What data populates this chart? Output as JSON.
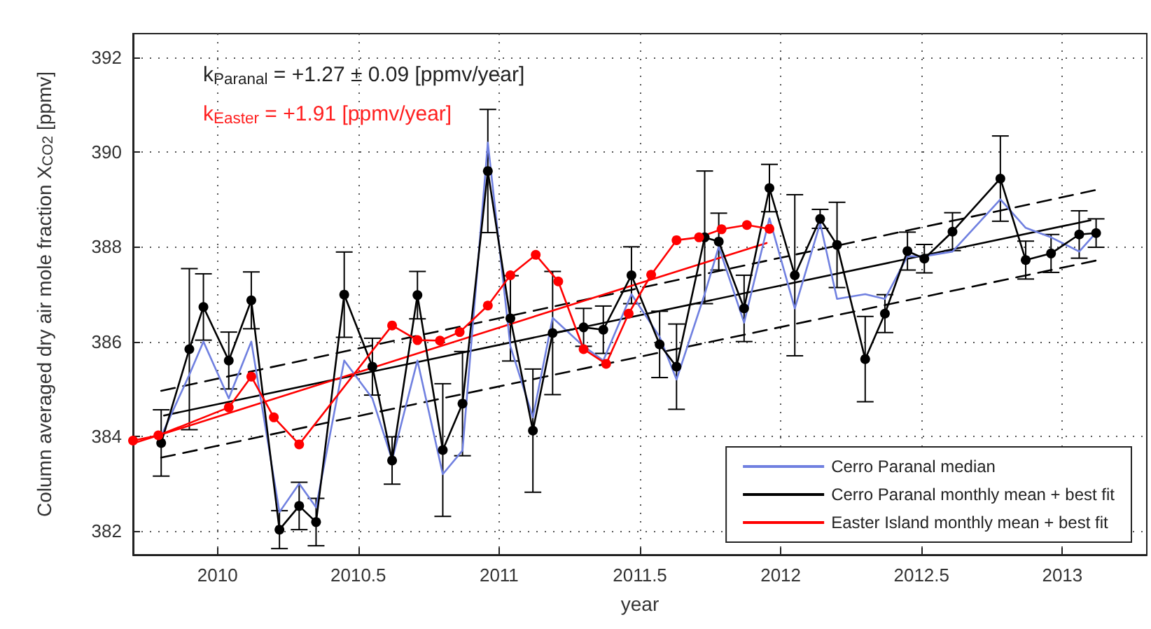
{
  "chart_data": {
    "type": "line",
    "xlabel": "year",
    "ylabel": "Column averaged dry air mole fraction X$_{CO2}$ [ppmv]",
    "annotations": [
      "k$_{Paranal}$ = +1.27 ± 0.09 [ppmv/year]",
      "k$_{Easter}$ = +1.91 [ppmv/year]"
    ],
    "xlim": [
      2009.7,
      2013.3
    ],
    "xticks": [
      2010,
      2010.5,
      2011,
      2011.5,
      2012,
      2012.5,
      2013
    ],
    "ylim": [
      381.5,
      392.5
    ],
    "yticks": [
      382,
      384,
      386,
      388,
      390,
      392
    ],
    "grid": true,
    "legend": "bottom right",
    "series": [
      {
        "color": "#000000",
        "marker": "none",
        "line_style": "solid",
        "x": [
          2009.81,
          2013.1
        ],
        "values": [
          384.44,
          388.56
        ]
      },
      {
        "color": "#000000",
        "marker": "none",
        "line_style": "dashed",
        "x": [
          2009.8,
          2013.12
        ],
        "values": [
          384.96,
          389.2
        ]
      },
      {
        "color": "#000000",
        "marker": "none",
        "line_style": "dashed",
        "x": [
          2009.8,
          2013.12
        ],
        "values": [
          383.55,
          387.71
        ]
      },
      {
        "color": "#ff0000",
        "marker": "none",
        "line_style": "solid",
        "x": [
          2009.7,
          2011.95
        ],
        "values": [
          383.85,
          388.08
        ]
      },
      {
        "name": "Cerro Paranal median",
        "color": "#7080e0",
        "marker": "none",
        "line_style": "solid",
        "x": [
          2009.8,
          2009.9,
          2009.95,
          2010.04,
          2010.12,
          2010.22,
          2010.29,
          2010.35,
          2010.45,
          2010.55,
          2010.62,
          2010.71,
          2010.8,
          2010.87,
          2010.96,
          2011.04,
          2011.12,
          2011.19,
          2011.3,
          2011.37,
          2011.47,
          2011.57,
          2011.63,
          2011.73,
          2011.78,
          2011.87,
          2011.96,
          2012.05,
          2012.14,
          2012.2,
          2012.3,
          2012.37,
          2012.45,
          2012.51,
          2012.61,
          2012.78,
          2012.87,
          2012.96,
          2013.06,
          2013.12
        ],
        "values": [
          384.0,
          385.3,
          386.0,
          384.8,
          386.0,
          382.4,
          383.0,
          382.5,
          385.6,
          384.8,
          383.5,
          385.6,
          383.2,
          383.7,
          390.2,
          385.9,
          384.4,
          386.5,
          385.9,
          385.6,
          387.0,
          386.1,
          385.2,
          387.0,
          388.0,
          386.4,
          388.6,
          386.7,
          388.5,
          386.9,
          387.0,
          386.9,
          387.8,
          387.8,
          387.9,
          389.0,
          388.4,
          388.2,
          387.9,
          388.3
        ]
      },
      {
        "name": "Cerro Paranal monthly mean + best fit",
        "color": "#000000",
        "marker": "circle",
        "line_style": "solid",
        "x": [
          2009.8,
          2009.9,
          2009.95,
          2010.04,
          2010.12,
          2010.22,
          2010.29,
          2010.35,
          2010.45,
          2010.55,
          2010.62,
          2010.71,
          2010.8,
          2010.87,
          2010.96,
          2011.04,
          2011.12,
          2011.19,
          2011.3,
          2011.37,
          2011.47,
          2011.57,
          2011.63,
          2011.73,
          2011.78,
          2011.87,
          2011.96,
          2012.05,
          2012.14,
          2012.2,
          2012.3,
          2012.37,
          2012.45,
          2012.51,
          2012.61,
          2012.78,
          2012.87,
          2012.96,
          2013.06,
          2013.12
        ],
        "values": [
          383.86,
          385.84,
          386.73,
          385.6,
          386.87,
          382.03,
          382.53,
          382.19,
          386.99,
          385.47,
          383.49,
          386.98,
          383.71,
          384.69,
          389.6,
          386.49,
          384.12,
          386.18,
          386.3,
          386.25,
          387.4,
          385.94,
          385.47,
          388.2,
          388.11,
          386.7,
          389.24,
          387.4,
          388.59,
          388.04,
          385.63,
          386.59,
          387.91,
          387.75,
          388.32,
          389.44,
          387.72,
          387.86,
          388.26,
          388.29
        ],
        "errors": [
          0.7,
          1.7,
          0.7,
          0.6,
          0.6,
          0.4,
          0.5,
          0.5,
          0.9,
          0.6,
          0.5,
          0.5,
          1.4,
          1.1,
          1.3,
          0.9,
          1.3,
          1.3,
          0.4,
          0.5,
          0.6,
          0.7,
          0.9,
          1.4,
          0.6,
          0.7,
          0.5,
          1.7,
          0.2,
          0.9,
          0.9,
          0.4,
          0.4,
          0.3,
          0.4,
          0.9,
          0.4,
          0.4,
          0.5,
          0.3
        ]
      },
      {
        "name": "Easter Island monthly mean + best fit",
        "color": "#ff0000",
        "marker": "circle",
        "line_style": "solid",
        "x": [
          2009.7,
          2009.79,
          2010.04,
          2010.12,
          2010.2,
          2010.29,
          2010.62,
          2010.71,
          2010.79,
          2010.86,
          2010.96,
          2011.04,
          2011.13,
          2011.21,
          2011.3,
          2011.38,
          2011.46,
          2011.54,
          2011.63,
          2011.71,
          2011.79,
          2011.88,
          2011.96
        ],
        "values": [
          383.91,
          384.02,
          384.61,
          385.26,
          384.4,
          383.83,
          386.34,
          386.03,
          386.02,
          386.2,
          386.76,
          387.4,
          387.83,
          387.27,
          385.84,
          385.53,
          386.59,
          387.41,
          388.14,
          388.2,
          388.37,
          388.46,
          388.38
        ]
      }
    ]
  }
}
